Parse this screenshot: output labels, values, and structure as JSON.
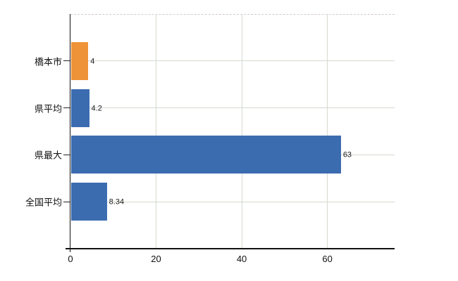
{
  "chart_data": {
    "type": "bar",
    "orientation": "horizontal",
    "title": "",
    "xlabel": "",
    "ylabel": "",
    "categories": [
      "橋本市",
      "県平均",
      "県最大",
      "全国平均"
    ],
    "values": [
      4,
      4.2,
      63,
      8.34
    ],
    "value_labels": [
      "4",
      "4.2",
      "63",
      "8.34"
    ],
    "bar_colors": [
      "#ef9338",
      "#3b6cb0",
      "#3b6cb0",
      "#3b6cb0"
    ],
    "x_ticks": [
      0,
      20,
      40,
      60
    ],
    "x_tick_labels": [
      "0",
      "20",
      "40",
      "60"
    ],
    "xlim": [
      0,
      75.7
    ],
    "grid": true,
    "legend": "none"
  },
  "colors": {
    "bar_orange": "#ef9338",
    "bar_blue": "#3b6cb0",
    "gridline": "#d4dacf",
    "top_border_dashed": "#d5c9d0",
    "axis": "#111111",
    "background": "#ffffff",
    "text": "#111111"
  }
}
